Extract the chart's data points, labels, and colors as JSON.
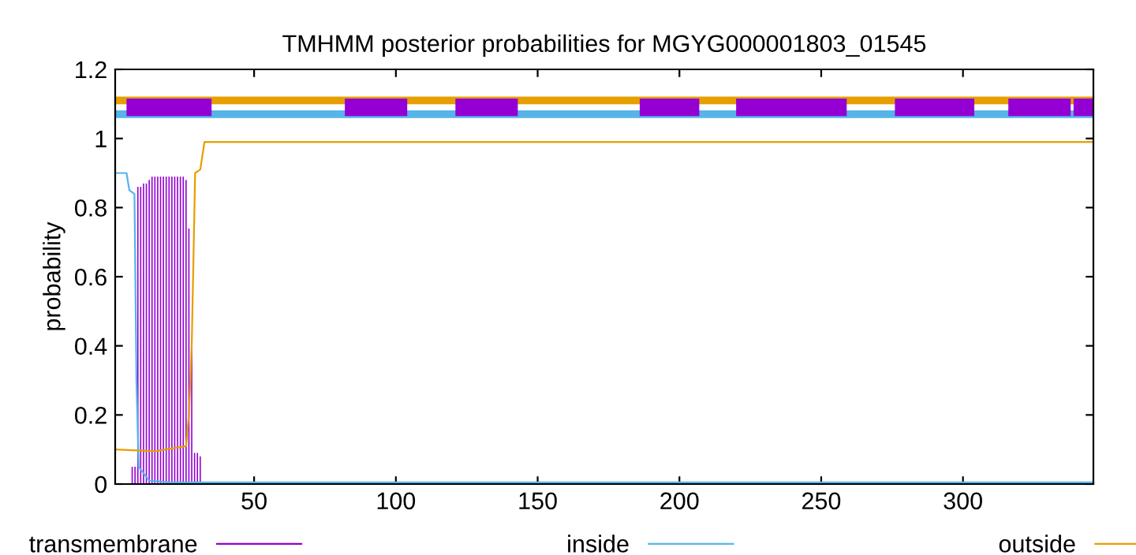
{
  "chart_data": {
    "type": "line",
    "title": "TMHMM posterior probabilities for MGYG000001803_01545",
    "ylabel": "probability",
    "xlim": [
      1,
      346
    ],
    "ylim": [
      0,
      1.2
    ],
    "xticks": [
      50,
      100,
      150,
      200,
      250,
      300
    ],
    "yticks": [
      0,
      0.2,
      0.4,
      0.6,
      0.8,
      1,
      1.2
    ],
    "grid": false,
    "legend": "bottom",
    "series": [
      {
        "name": "transmembrane",
        "type": "bar",
        "color": "#9400d3",
        "x": [
          7,
          8,
          9,
          10,
          11,
          12,
          13,
          14,
          15,
          16,
          17,
          18,
          19,
          20,
          21,
          22,
          23,
          24,
          25,
          26,
          27,
          28,
          29,
          30,
          31
        ],
        "values": [
          0.05,
          0.05,
          0.86,
          0.86,
          0.87,
          0.87,
          0.88,
          0.89,
          0.89,
          0.89,
          0.89,
          0.89,
          0.89,
          0.89,
          0.89,
          0.89,
          0.89,
          0.89,
          0.89,
          0.88,
          0.74,
          0.4,
          0.09,
          0.09,
          0.08
        ]
      },
      {
        "name": "inside",
        "color": "#56b4e9",
        "x": [
          1,
          5,
          6,
          7.8,
          8.5,
          9.3,
          13,
          20,
          346
        ],
        "values": [
          0.9,
          0.9,
          0.85,
          0.84,
          0.3,
          0.05,
          0.01,
          0.005,
          0.005
        ]
      },
      {
        "name": "outside",
        "color": "#e69f00",
        "x": [
          1,
          15,
          26,
          27,
          28,
          29.2,
          31,
          32.5,
          346
        ],
        "values": [
          0.1,
          0.095,
          0.11,
          0.2,
          0.4,
          0.9,
          0.91,
          0.99,
          0.99
        ]
      },
      {
        "color": "#e69f00",
        "x": [
          1,
          346
        ],
        "values": [
          1.11,
          1.11
        ]
      },
      {
        "color": "#56b4e9",
        "x": [
          1,
          346
        ],
        "values": [
          1.07,
          1.07
        ]
      },
      {
        "color": "#9400d3",
        "x": [
          5,
          35,
          null,
          82,
          104,
          null,
          121,
          143,
          null,
          186,
          207,
          null,
          220,
          259,
          null,
          276,
          304,
          null,
          316,
          338,
          null,
          339,
          346
        ],
        "values": [
          1.09,
          1.09,
          null,
          1.09,
          1.09,
          null,
          1.09,
          1.09,
          null,
          1.09,
          1.09,
          null,
          1.09,
          1.09,
          null,
          1.09,
          1.09,
          null,
          1.09,
          1.09,
          null,
          1.09,
          1.09
        ]
      }
    ]
  }
}
